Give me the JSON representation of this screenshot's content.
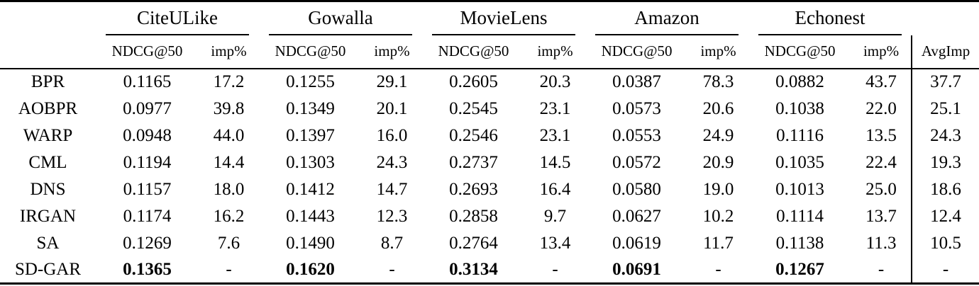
{
  "table": {
    "groups": [
      {
        "label": "CiteULike"
      },
      {
        "label": "Gowalla"
      },
      {
        "label": "MovieLens"
      },
      {
        "label": "Amazon"
      },
      {
        "label": "Echonest"
      }
    ],
    "subheaders": {
      "ndcg": "NDCG@50",
      "imp": "imp%",
      "avgimp": "AvgImp"
    },
    "rows": [
      {
        "method": "BPR",
        "cells": [
          "0.1165",
          "17.2",
          "0.1255",
          "29.1",
          "0.2605",
          "20.3",
          "0.0387",
          "78.3",
          "0.0882",
          "43.7",
          "37.7"
        ],
        "bold_ndcg": false
      },
      {
        "method": "AOBPR",
        "cells": [
          "0.0977",
          "39.8",
          "0.1349",
          "20.1",
          "0.2545",
          "23.1",
          "0.0573",
          "20.6",
          "0.1038",
          "22.0",
          "25.1"
        ],
        "bold_ndcg": false
      },
      {
        "method": "WARP",
        "cells": [
          "0.0948",
          "44.0",
          "0.1397",
          "16.0",
          "0.2546",
          "23.1",
          "0.0553",
          "24.9",
          "0.1116",
          "13.5",
          "24.3"
        ],
        "bold_ndcg": false
      },
      {
        "method": "CML",
        "cells": [
          "0.1194",
          "14.4",
          "0.1303",
          "24.3",
          "0.2737",
          "14.5",
          "0.0572",
          "20.9",
          "0.1035",
          "22.4",
          "19.3"
        ],
        "bold_ndcg": false
      },
      {
        "method": "DNS",
        "cells": [
          "0.1157",
          "18.0",
          "0.1412",
          "14.7",
          "0.2693",
          "16.4",
          "0.0580",
          "19.0",
          "0.1013",
          "25.0",
          "18.6"
        ],
        "bold_ndcg": false
      },
      {
        "method": "IRGAN",
        "cells": [
          "0.1174",
          "16.2",
          "0.1443",
          "12.3",
          "0.2858",
          "9.7",
          "0.0627",
          "10.2",
          "0.1114",
          "13.7",
          "12.4"
        ],
        "bold_ndcg": false
      },
      {
        "method": "SA",
        "cells": [
          "0.1269",
          "7.6",
          "0.1490",
          "8.7",
          "0.2764",
          "13.4",
          "0.0619",
          "11.7",
          "0.1138",
          "11.3",
          "10.5"
        ],
        "bold_ndcg": false
      },
      {
        "method": "SD-GAR",
        "cells": [
          "0.1365",
          "-",
          "0.1620",
          "-",
          "0.3134",
          "-",
          "0.0691",
          "-",
          "0.1267",
          "-",
          "-"
        ],
        "bold_ndcg": true
      }
    ]
  }
}
